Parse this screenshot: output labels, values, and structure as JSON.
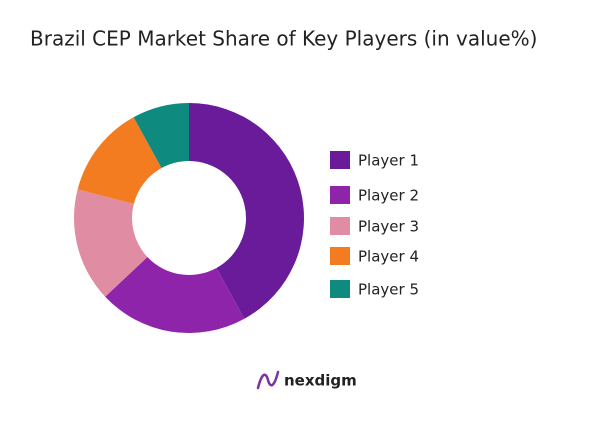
{
  "chart_data": {
    "type": "donut",
    "title": "Brazil CEP Market Share of Key Players (in value%)",
    "categories": [
      "Player 1",
      "Player 2",
      "Player 3",
      "Player 4",
      "Player 5"
    ],
    "values": [
      42,
      21,
      16,
      13,
      8
    ],
    "colors": [
      "#6a1b9a",
      "#8e24aa",
      "#e08ca2",
      "#f47c20",
      "#0f8a7e"
    ],
    "legend": "right"
  },
  "footer": {
    "brand": "nexdigm"
  }
}
